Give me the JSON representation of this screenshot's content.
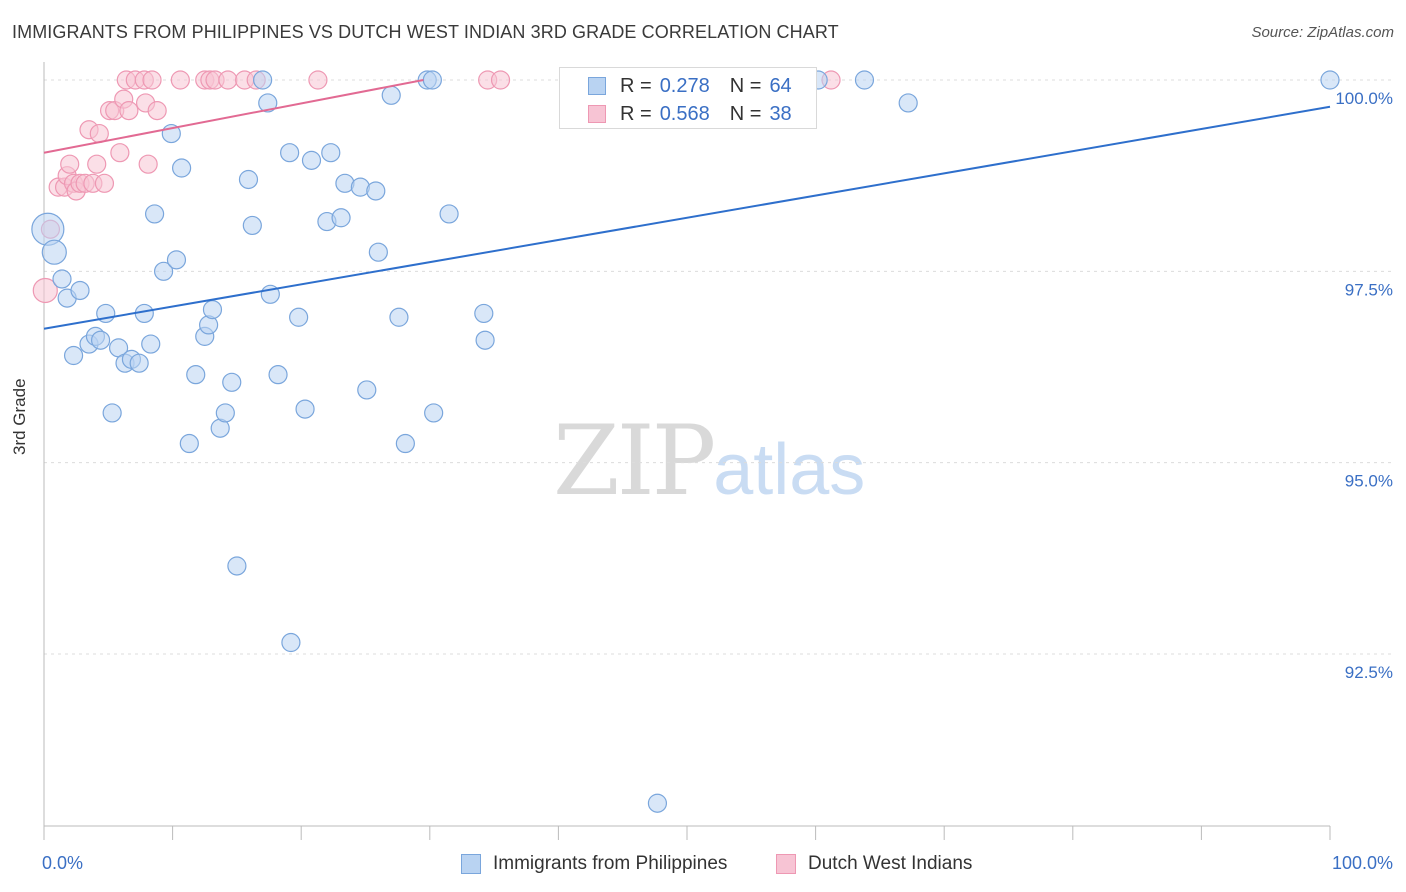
{
  "header": {
    "title": "IMMIGRANTS FROM PHILIPPINES VS DUTCH WEST INDIAN 3RD GRADE CORRELATION CHART",
    "source": "Source: ZipAtlas.com"
  },
  "watermark": {
    "zip": "ZIP",
    "atlas": "atlas"
  },
  "legend_top": {
    "rows": [
      {
        "r_label": "R =",
        "r_value": "0.278",
        "n_label": "N =",
        "n_value": "64"
      },
      {
        "r_label": "R =",
        "r_value": "0.568",
        "n_label": "N =",
        "n_value": "38"
      }
    ]
  },
  "legend_bottom": {
    "items": [
      {
        "label": "Immigrants from Philippines"
      },
      {
        "label": "Dutch West Indians"
      }
    ]
  },
  "colors": {
    "blue_fill": "#b9d3f2",
    "blue_stroke": "#7aa6dc",
    "blue_line": "#2e6fcc",
    "pink_fill": "#f7c4d4",
    "pink_stroke": "#ee98b3",
    "pink_line": "#e26a93",
    "tick_label": "#3a6fc4",
    "grid": "#dcdcdc"
  },
  "chart_data": {
    "type": "scatter",
    "title": "IMMIGRANTS FROM PHILIPPINES VS DUTCH WEST INDIAN 3RD GRADE CORRELATION CHART",
    "xlabel": "",
    "ylabel": "3rd Grade",
    "xlim": [
      0,
      100
    ],
    "ylim": [
      90.0,
      100.3
    ],
    "x_tick_labels": [
      "0.0%",
      "100.0%"
    ],
    "y_ticks": [
      92.5,
      95.0,
      97.5,
      100.0
    ],
    "y_tick_labels": [
      "92.5%",
      "95.0%",
      "97.5%",
      "100.0%"
    ],
    "grid": true,
    "series": [
      {
        "name": "Immigrants from Philippines",
        "R": 0.278,
        "N": 64,
        "trend": {
          "x": [
            0,
            100
          ],
          "y": [
            96.75,
            99.65
          ]
        },
        "points": [
          {
            "x": 0.3,
            "y": 98.05,
            "s": "xl"
          },
          {
            "x": 0.8,
            "y": 97.75,
            "s": "l"
          },
          {
            "x": 1.4,
            "y": 97.4
          },
          {
            "x": 1.8,
            "y": 97.15
          },
          {
            "x": 2.3,
            "y": 96.4
          },
          {
            "x": 2.8,
            "y": 97.25
          },
          {
            "x": 3.5,
            "y": 96.55
          },
          {
            "x": 4.0,
            "y": 96.65
          },
          {
            "x": 4.4,
            "y": 96.6
          },
          {
            "x": 4.8,
            "y": 96.95
          },
          {
            "x": 5.3,
            "y": 95.65
          },
          {
            "x": 5.8,
            "y": 96.5
          },
          {
            "x": 6.3,
            "y": 96.3
          },
          {
            "x": 6.8,
            "y": 96.35
          },
          {
            "x": 7.4,
            "y": 96.3
          },
          {
            "x": 7.8,
            "y": 96.95
          },
          {
            "x": 8.3,
            "y": 96.55
          },
          {
            "x": 8.6,
            "y": 98.25
          },
          {
            "x": 9.3,
            "y": 97.5
          },
          {
            "x": 9.9,
            "y": 99.3
          },
          {
            "x": 10.3,
            "y": 97.65
          },
          {
            "x": 10.7,
            "y": 98.85
          },
          {
            "x": 11.3,
            "y": 95.25
          },
          {
            "x": 11.8,
            "y": 96.15
          },
          {
            "x": 12.5,
            "y": 96.65
          },
          {
            "x": 12.8,
            "y": 96.8
          },
          {
            "x": 13.1,
            "y": 97.0
          },
          {
            "x": 13.7,
            "y": 95.45
          },
          {
            "x": 14.1,
            "y": 95.65
          },
          {
            "x": 14.6,
            "y": 96.05
          },
          {
            "x": 15.0,
            "y": 93.65
          },
          {
            "x": 15.9,
            "y": 98.7
          },
          {
            "x": 16.2,
            "y": 98.1
          },
          {
            "x": 17.0,
            "y": 100.0
          },
          {
            "x": 17.4,
            "y": 99.7
          },
          {
            "x": 17.6,
            "y": 97.2
          },
          {
            "x": 18.2,
            "y": 96.15
          },
          {
            "x": 19.1,
            "y": 99.05
          },
          {
            "x": 19.2,
            "y": 92.65
          },
          {
            "x": 19.8,
            "y": 96.9
          },
          {
            "x": 20.3,
            "y": 95.7
          },
          {
            "x": 20.8,
            "y": 98.95
          },
          {
            "x": 22.0,
            "y": 98.15
          },
          {
            "x": 22.3,
            "y": 99.05
          },
          {
            "x": 23.1,
            "y": 98.2
          },
          {
            "x": 23.4,
            "y": 98.65
          },
          {
            "x": 24.6,
            "y": 98.6
          },
          {
            "x": 25.1,
            "y": 95.95
          },
          {
            "x": 25.8,
            "y": 98.55
          },
          {
            "x": 26.0,
            "y": 97.75
          },
          {
            "x": 27.0,
            "y": 99.8
          },
          {
            "x": 27.6,
            "y": 96.9
          },
          {
            "x": 28.1,
            "y": 95.25
          },
          {
            "x": 29.8,
            "y": 100.0
          },
          {
            "x": 30.2,
            "y": 100.0
          },
          {
            "x": 30.3,
            "y": 95.65
          },
          {
            "x": 31.5,
            "y": 98.25
          },
          {
            "x": 34.2,
            "y": 96.95
          },
          {
            "x": 34.3,
            "y": 96.6
          },
          {
            "x": 47.7,
            "y": 90.55
          },
          {
            "x": 60.2,
            "y": 100.0
          },
          {
            "x": 63.8,
            "y": 100.0
          },
          {
            "x": 67.2,
            "y": 99.7
          },
          {
            "x": 100.0,
            "y": 100.0
          }
        ]
      },
      {
        "name": "Dutch West Indians",
        "R": 0.568,
        "N": 38,
        "trend": {
          "x": [
            0,
            29.5
          ],
          "y": [
            99.05,
            100.0
          ]
        },
        "points": [
          {
            "x": 0.1,
            "y": 97.25,
            "s": "l"
          },
          {
            "x": 0.5,
            "y": 98.05
          },
          {
            "x": 1.1,
            "y": 98.6
          },
          {
            "x": 1.6,
            "y": 98.6
          },
          {
            "x": 1.8,
            "y": 98.75
          },
          {
            "x": 2.0,
            "y": 98.9
          },
          {
            "x": 2.3,
            "y": 98.65
          },
          {
            "x": 2.5,
            "y": 98.55
          },
          {
            "x": 2.8,
            "y": 98.65
          },
          {
            "x": 3.2,
            "y": 98.65
          },
          {
            "x": 3.5,
            "y": 99.35
          },
          {
            "x": 3.8,
            "y": 98.65
          },
          {
            "x": 4.1,
            "y": 98.9
          },
          {
            "x": 4.3,
            "y": 99.3
          },
          {
            "x": 4.7,
            "y": 98.65
          },
          {
            "x": 5.1,
            "y": 99.6
          },
          {
            "x": 5.5,
            "y": 99.6
          },
          {
            "x": 5.9,
            "y": 99.05
          },
          {
            "x": 6.2,
            "y": 99.75
          },
          {
            "x": 6.4,
            "y": 100.0
          },
          {
            "x": 6.6,
            "y": 99.6
          },
          {
            "x": 7.1,
            "y": 100.0
          },
          {
            "x": 7.8,
            "y": 100.0
          },
          {
            "x": 7.9,
            "y": 99.7
          },
          {
            "x": 8.1,
            "y": 98.9
          },
          {
            "x": 8.4,
            "y": 100.0
          },
          {
            "x": 8.8,
            "y": 99.6
          },
          {
            "x": 10.6,
            "y": 100.0
          },
          {
            "x": 12.5,
            "y": 100.0
          },
          {
            "x": 12.9,
            "y": 100.0
          },
          {
            "x": 13.3,
            "y": 100.0
          },
          {
            "x": 14.3,
            "y": 100.0
          },
          {
            "x": 15.6,
            "y": 100.0
          },
          {
            "x": 16.5,
            "y": 100.0
          },
          {
            "x": 21.3,
            "y": 100.0
          },
          {
            "x": 34.5,
            "y": 100.0
          },
          {
            "x": 35.5,
            "y": 100.0
          },
          {
            "x": 61.2,
            "y": 100.0
          }
        ]
      }
    ]
  }
}
